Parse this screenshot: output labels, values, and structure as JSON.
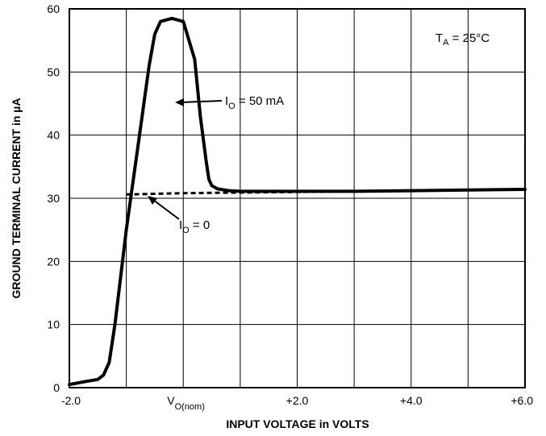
{
  "chart_data": {
    "type": "line",
    "xlabel": "INPUT VOLTAGE in VOLTS",
    "ylabel": "GROUND TERMINAL CURRENT in µA",
    "xlim": [
      -2.0,
      6.0
    ],
    "ylim": [
      0,
      60
    ],
    "grid": true,
    "x_ticks": [
      {
        "value": -2.0,
        "label": "-2.0"
      },
      {
        "value": 2.0,
        "label": "+2.0"
      },
      {
        "value": 4.0,
        "label": "+4.0"
      },
      {
        "value": 6.0,
        "label": "+6.0"
      }
    ],
    "x_tick_special": {
      "main": "V",
      "sub": "O(nom)"
    },
    "y_ticks": [
      0,
      10,
      20,
      30,
      40,
      50,
      60
    ],
    "condition": {
      "main": "T",
      "sub": "A",
      "rest": " = 25°C"
    },
    "series": [
      {
        "name": "I_O = 50 mA",
        "label": {
          "main": "I",
          "sub": "O",
          "rest": " = 50 mA"
        },
        "style": "solid",
        "color": "#000000",
        "x": [
          -2.0,
          -1.7,
          -1.5,
          -1.4,
          -1.3,
          -1.2,
          -1.0,
          -0.8,
          -0.6,
          -0.5,
          -0.4,
          -0.2,
          0.0,
          0.2,
          0.3,
          0.4,
          0.45,
          0.5,
          0.6,
          0.8,
          1.0,
          1.5,
          2.0,
          3.0,
          4.0,
          5.0,
          6.0
        ],
        "y": [
          0.5,
          1.0,
          1.3,
          2.0,
          4.0,
          10.0,
          25.0,
          38.0,
          51.0,
          56.0,
          58.0,
          58.5,
          58.0,
          52.0,
          43.0,
          36.0,
          33.0,
          32.0,
          31.5,
          31.2,
          31.1,
          31.1,
          31.1,
          31.1,
          31.2,
          31.3,
          31.4
        ]
      },
      {
        "name": "I_O = 0",
        "label": {
          "main": "I",
          "sub": "O",
          "rest": " = 0"
        },
        "style": "dashed",
        "color": "#000000",
        "x": [
          -1.0,
          -0.5,
          0.0,
          1.0,
          2.0,
          3.0,
          4.0,
          5.0,
          6.0
        ],
        "y": [
          30.6,
          30.7,
          30.8,
          30.9,
          31.0,
          31.1,
          31.2,
          31.3,
          31.4
        ]
      }
    ]
  }
}
